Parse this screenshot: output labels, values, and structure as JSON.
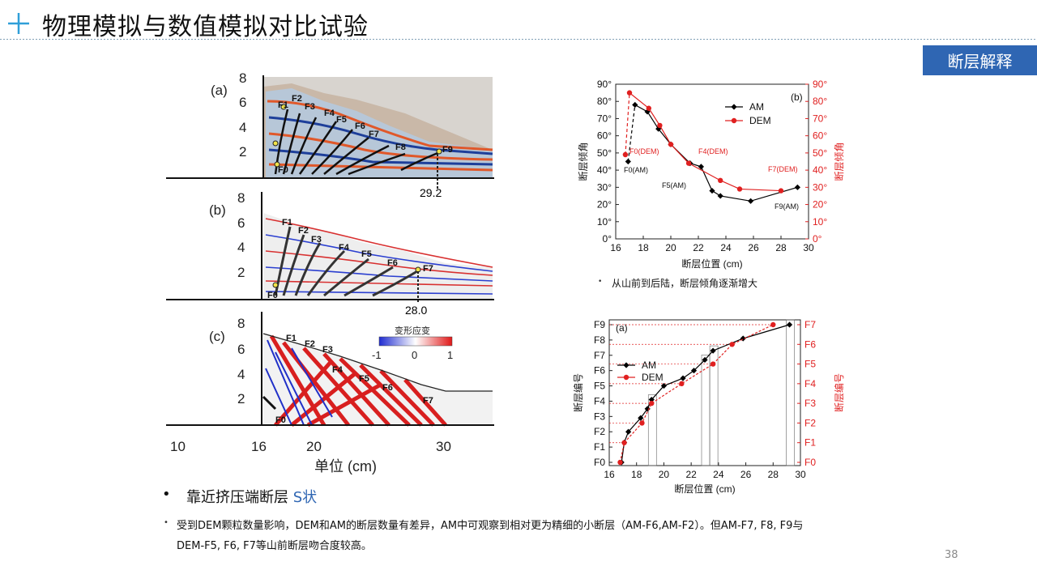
{
  "title": "物理模拟与数值模拟对比试验",
  "tag": "断层解释",
  "page_number": "38",
  "bullet_main_prefix": "靠近挤压端断层",
  "bullet_main_highlight": "S状",
  "bullet_detail_1": "受到DEM颗粒数量影响，DEM和AM的断层数量有差异，AM中可观察到相对更为精细的小断层（AM-F6,AM-F2）。但AM-F7, F8, F9与",
  "bullet_detail_2": "DEM-F5, F6, F7等山前断层吻合度较高。",
  "bullet_chart": "从山前到后陆，断层倾角逐渐增大",
  "colors": {
    "accent": "#2f66b3",
    "am": "#000000",
    "dem": "#e02020",
    "plus": "#2f9fd8"
  },
  "left_figure": {
    "panel_a": {
      "label": "(a)",
      "y_ticks": [
        "8",
        "6",
        "4",
        "2"
      ],
      "faults": [
        "F0",
        "F1",
        "F2",
        "F3",
        "F4",
        "F5",
        "F6",
        "F7",
        "F8",
        "F9"
      ],
      "marker": "29.2"
    },
    "panel_b": {
      "label": "(b)",
      "y_ticks": [
        "8",
        "6",
        "4",
        "2"
      ],
      "faults": [
        "F0",
        "F1",
        "F2",
        "F3",
        "F4",
        "F5",
        "F6",
        "F7"
      ],
      "marker": "28.0"
    },
    "panel_c": {
      "label": "(c)",
      "y_ticks": [
        "8",
        "6",
        "4",
        "2"
      ],
      "faults": [
        "F0",
        "F1",
        "F2",
        "F3",
        "F4",
        "F5",
        "F6",
        "F7"
      ],
      "colorbar_title": "变形应变",
      "colorbar_ticks": [
        "-1",
        "0",
        "1"
      ]
    },
    "x_ticks": [
      "10",
      "16",
      "20",
      "30"
    ],
    "x_label": "单位 (cm)"
  },
  "chart_data": [
    {
      "type": "line",
      "label": "(b)",
      "xlabel": "断层位置 (cm)",
      "ylabel": "断层倾角",
      "ylabel_right": "断层倾角",
      "xlim": [
        16,
        30
      ],
      "ylim": [
        0,
        90
      ],
      "x_ticks": [
        "16",
        "18",
        "20",
        "22",
        "24",
        "26",
        "28",
        "30"
      ],
      "y_ticks": [
        "0°",
        "10°",
        "20°",
        "30°",
        "40°",
        "50°",
        "60°",
        "70°",
        "80°",
        "90°"
      ],
      "legend": "top-right",
      "series": [
        {
          "name": "AM",
          "marker": "diamond",
          "color": "#000000",
          "x": [
            16.9,
            17.4,
            18.3,
            19.1,
            20.0,
            21.4,
            22.2,
            23.0,
            23.6,
            25.8,
            29.2
          ],
          "y": [
            45,
            78,
            74,
            64,
            55,
            44,
            42,
            28,
            25,
            22,
            30
          ]
        },
        {
          "name": "DEM",
          "marker": "circle",
          "color": "#e02020",
          "x": [
            16.7,
            17.0,
            18.4,
            19.2,
            20.0,
            21.3,
            23.6,
            25.0,
            28.0
          ],
          "y": [
            49,
            85,
            76,
            66,
            55,
            44,
            34,
            29,
            28
          ]
        }
      ],
      "annotations": [
        "F0(AM)",
        "F0(DEM)",
        "F4(DEM)",
        "F5(AM)",
        "F7(DEM)",
        "F9(AM)"
      ]
    },
    {
      "type": "line",
      "label": "(a)",
      "xlabel": "断层位置 (cm)",
      "ylabel": "断层编号",
      "ylabel_right": "断层编号",
      "xlim": [
        16,
        30
      ],
      "x_ticks": [
        "16",
        "18",
        "20",
        "22",
        "24",
        "26",
        "28",
        "30"
      ],
      "y_ticks_left": [
        "F0",
        "F1",
        "F2",
        "F3",
        "F4",
        "F5",
        "F6",
        "F7",
        "F8",
        "F9"
      ],
      "y_ticks_right": [
        "F0",
        "F1",
        "F2",
        "F3",
        "F4",
        "F5",
        "F6",
        "F7"
      ],
      "legend": "middle-left",
      "series": [
        {
          "name": "AM",
          "marker": "diamond",
          "color": "#000000",
          "x": [
            16.9,
            17.1,
            17.4,
            18.3,
            18.8,
            19.1,
            20.0,
            21.4,
            22.2,
            23.0,
            23.6,
            25.8,
            29.2
          ],
          "y": [
            0,
            1.3,
            2.0,
            2.9,
            3.5,
            4.1,
            5.0,
            5.5,
            6.0,
            6.7,
            7.3,
            8.1,
            9.0
          ]
        },
        {
          "name": "DEM",
          "marker": "circle",
          "color": "#e02020",
          "x": [
            16.8,
            17.1,
            18.4,
            19.1,
            21.3,
            23.6,
            25.0,
            28.0
          ],
          "y": [
            0,
            1,
            2,
            3,
            4,
            5,
            6,
            7
          ]
        }
      ]
    }
  ]
}
